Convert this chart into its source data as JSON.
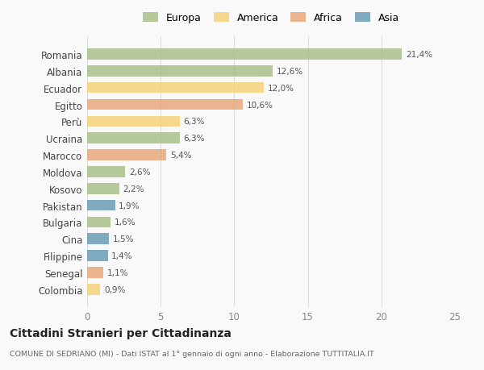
{
  "categories": [
    "Romania",
    "Albania",
    "Ecuador",
    "Egitto",
    "Perù",
    "Ucraina",
    "Marocco",
    "Moldova",
    "Kosovo",
    "Pakistan",
    "Bulgaria",
    "Cina",
    "Filippine",
    "Senegal",
    "Colombia"
  ],
  "values": [
    21.4,
    12.6,
    12.0,
    10.6,
    6.3,
    6.3,
    5.4,
    2.6,
    2.2,
    1.9,
    1.6,
    1.5,
    1.4,
    1.1,
    0.9
  ],
  "labels": [
    "21,4%",
    "12,6%",
    "12,0%",
    "10,6%",
    "6,3%",
    "6,3%",
    "5,4%",
    "2,6%",
    "2,2%",
    "1,9%",
    "1,6%",
    "1,5%",
    "1,4%",
    "1,1%",
    "0,9%"
  ],
  "continents": [
    "Europa",
    "Europa",
    "America",
    "Africa",
    "America",
    "Europa",
    "Africa",
    "Europa",
    "Europa",
    "Asia",
    "Europa",
    "Asia",
    "Asia",
    "Africa",
    "America"
  ],
  "colors": {
    "Europa": "#a8c08a",
    "America": "#f5d17a",
    "Africa": "#e8a87c",
    "Asia": "#6a9bb5"
  },
  "legend_order": [
    "Europa",
    "America",
    "Africa",
    "Asia"
  ],
  "xlim": [
    0,
    25
  ],
  "xticks": [
    0,
    5,
    10,
    15,
    20,
    25
  ],
  "title": "Cittadini Stranieri per Cittadinanza",
  "subtitle": "COMUNE DI SEDRIANO (MI) - Dati ISTAT al 1° gennaio di ogni anno - Elaborazione TUTTITALIA.IT",
  "background_color": "#f9f9f9",
  "bar_alpha": 0.85
}
